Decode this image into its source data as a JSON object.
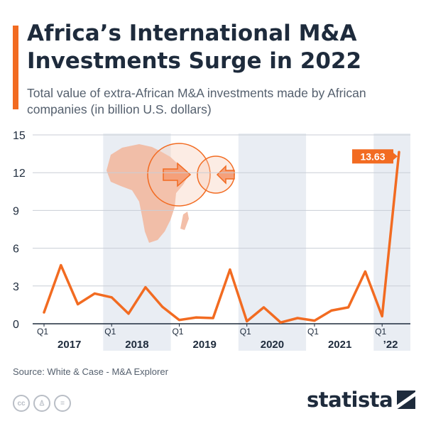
{
  "header": {
    "title": "Africa’s International M&A Investments Surge in 2022",
    "subtitle": "Total value of extra-African M&A investments made by African companies (in billion U.S. dollars)"
  },
  "chart_data": {
    "type": "line",
    "title": "Africa’s International M&A Investments Surge in 2022",
    "subtitle": "Total value of extra-African M&A investments made by African companies (in billion U.S. dollars)",
    "xlabel": "",
    "ylabel": "",
    "ylim": [
      0,
      15
    ],
    "yticks": [
      "0",
      "3",
      "6",
      "9",
      "12",
      "15"
    ],
    "grid": true,
    "quarter_label": "Q1",
    "years": [
      "2017",
      "2018",
      "2019",
      "2020",
      "2021",
      "’22"
    ],
    "x": [
      "2017 Q1",
      "2017 Q2",
      "2017 Q3",
      "2017 Q4",
      "2018 Q1",
      "2018 Q2",
      "2018 Q3",
      "2018 Q4",
      "2019 Q1",
      "2019 Q2",
      "2019 Q3",
      "2019 Q4",
      "2020 Q1",
      "2020 Q2",
      "2020 Q3",
      "2020 Q4",
      "2021 Q1",
      "2021 Q2",
      "2021 Q3",
      "2021 Q4",
      "2022 Q1",
      "2022 Q2"
    ],
    "series": [
      {
        "values": [
          0.9,
          4.65,
          1.55,
          2.4,
          2.1,
          0.8,
          2.9,
          1.35,
          0.3,
          0.5,
          0.45,
          4.3,
          0.2,
          1.3,
          0.1,
          0.45,
          0.25,
          1.05,
          1.3,
          4.15,
          0.6,
          13.63
        ]
      }
    ],
    "highlight_label": "13.63",
    "colors": {
      "line": "#f26b21",
      "band": "#e9edf3",
      "grid": "#c9ced6",
      "map": "#f2b8a0"
    }
  },
  "footer": {
    "source": "Source: White & Case - M&A Explorer",
    "logo": "statista",
    "license_icons": [
      "cc-icon",
      "by-icon",
      "nd-icon"
    ]
  }
}
